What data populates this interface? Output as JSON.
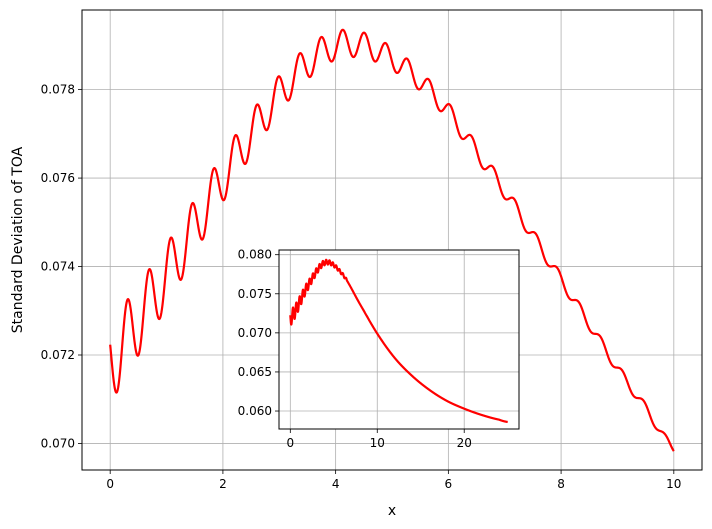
{
  "chart_data": [
    {
      "type": "line",
      "title": "",
      "xlabel": "x",
      "ylabel": "Standard Deviation of TOA",
      "xlim": [
        -0.5,
        10.5
      ],
      "ylim": [
        0.0694,
        0.0798
      ],
      "grid": true,
      "x_ticks": [
        0,
        2,
        4,
        6,
        8,
        10
      ],
      "y_ticks": [
        0.07,
        0.072,
        0.074,
        0.076,
        0.078
      ],
      "x_tick_labels": [
        "0",
        "2",
        "4",
        "6",
        "8",
        "10"
      ],
      "y_tick_labels": [
        "0.070",
        "0.072",
        "0.074",
        "0.076",
        "0.078"
      ],
      "line_color": "#ff0000",
      "series": [
        {
          "x": [
            0,
            0.5,
            1,
            1.5,
            2,
            2.5,
            3,
            3.5,
            4,
            4.5,
            5,
            5.5,
            6,
            6.5,
            7,
            7.5,
            8,
            8.5,
            9,
            9.5,
            10
          ],
          "values": [
            0.0719,
            0.0728,
            0.0738,
            0.0749,
            0.076,
            0.077,
            0.0779,
            0.0786,
            0.079,
            0.079,
            0.0787,
            0.0782,
            0.0775,
            0.0766,
            0.0757,
            0.0747,
            0.0737,
            0.0727,
            0.0717,
            0.0708,
            0.0699
          ]
        }
      ],
      "oscillation": "damped ripple superimposed on the curve, largest near x=0 and fading toward x=10 (about 26 cycles over the range)"
    },
    {
      "type": "line",
      "title": "",
      "xlabel": "",
      "ylabel": "",
      "position": "inset, lower middle of the main plot",
      "xlim": [
        -1.3,
        26.3
      ],
      "ylim": [
        0.0577,
        0.0806
      ],
      "grid": true,
      "x_ticks": [
        0,
        10,
        20
      ],
      "y_ticks": [
        0.06,
        0.065,
        0.07,
        0.075,
        0.08
      ],
      "x_tick_labels": [
        "0",
        "10",
        "20"
      ],
      "y_tick_labels": [
        "0.060",
        "0.065",
        "0.070",
        "0.075",
        "0.080"
      ],
      "line_color": "#ff0000",
      "series": [
        {
          "x": [
            0,
            2,
            4,
            6,
            8,
            10,
            12,
            14,
            16,
            18,
            20,
            22,
            24,
            25
          ],
          "values": [
            0.0719,
            0.076,
            0.079,
            0.0775,
            0.0737,
            0.0699,
            0.0668,
            0.0645,
            0.0627,
            0.0613,
            0.0603,
            0.0595,
            0.0589,
            0.0586
          ]
        }
      ],
      "oscillation": "dense ripple for x < 6, smooth beyond"
    }
  ]
}
